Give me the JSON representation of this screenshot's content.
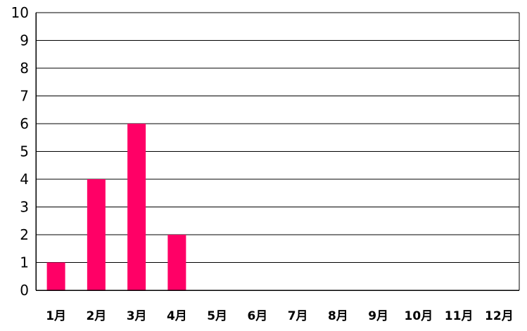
{
  "chart_data": {
    "type": "bar",
    "categories": [
      "1月",
      "2月",
      "3月",
      "4月",
      "5月",
      "6月",
      "7月",
      "8月",
      "9月",
      "10月",
      "11月",
      "12月"
    ],
    "values": [
      1,
      4,
      6,
      2,
      0,
      0,
      0,
      0,
      0,
      0,
      0,
      0
    ],
    "title": "",
    "xlabel": "",
    "ylabel": "",
    "ylim": [
      0,
      10
    ],
    "yticks": [
      "0",
      "1",
      "2",
      "3",
      "4",
      "5",
      "6",
      "7",
      "8",
      "9",
      "10"
    ],
    "grid": true,
    "legend": "none",
    "bar_color": "#ff0066",
    "grid_color": "#000000"
  }
}
